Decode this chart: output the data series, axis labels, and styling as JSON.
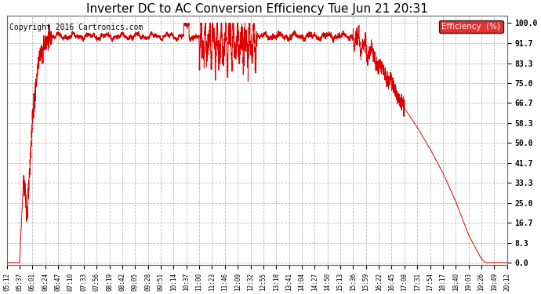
{
  "title": "Inverter DC to AC Conversion Efficiency Tue Jun 21 20:31",
  "copyright": "Copyright 2016 Cartronics.com",
  "legend_label": "Efficiency  (%)",
  "legend_bg": "#dd0000",
  "legend_text_color": "#ffffff",
  "line_color": "#dd0000",
  "bg_color": "#ffffff",
  "plot_bg_color": "#ffffff",
  "grid_color": "#aaaaaa",
  "title_fontsize": 11,
  "copyright_fontsize": 7,
  "ytick_labels": [
    "0.0",
    "8.3",
    "16.7",
    "25.0",
    "33.3",
    "41.7",
    "50.0",
    "58.3",
    "66.7",
    "75.0",
    "83.3",
    "91.7",
    "100.0"
  ],
  "ytick_values": [
    0.0,
    8.3,
    16.7,
    25.0,
    33.3,
    41.7,
    50.0,
    58.3,
    66.7,
    75.0,
    83.3,
    91.7,
    100.0
  ],
  "xtick_labels": [
    "05:12",
    "05:37",
    "06:01",
    "06:24",
    "06:47",
    "07:10",
    "07:33",
    "07:56",
    "08:19",
    "08:42",
    "09:05",
    "09:28",
    "09:51",
    "10:14",
    "10:37",
    "11:00",
    "11:23",
    "11:46",
    "12:09",
    "12:32",
    "12:55",
    "13:18",
    "13:41",
    "14:04",
    "14:27",
    "14:50",
    "15:13",
    "15:36",
    "15:59",
    "16:22",
    "16:45",
    "17:08",
    "17:31",
    "17:54",
    "18:17",
    "18:40",
    "19:03",
    "19:26",
    "19:49",
    "20:12"
  ],
  "ylim": [
    -1,
    103
  ],
  "xlim": [
    0,
    39
  ]
}
